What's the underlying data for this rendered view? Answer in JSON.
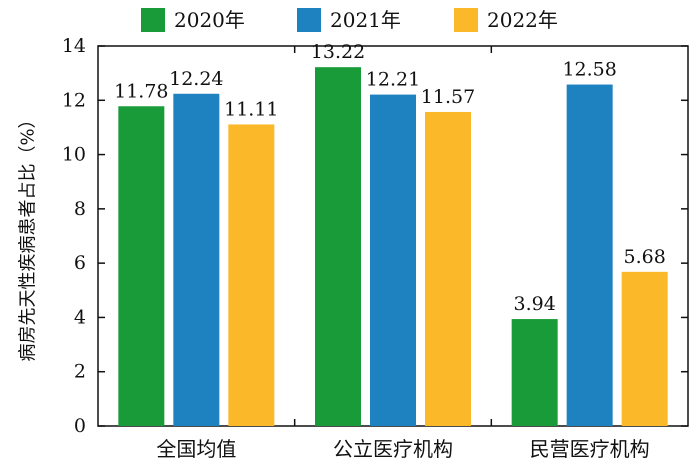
{
  "chart_data": {
    "type": "bar",
    "title": "",
    "xlabel": "",
    "ylabel": "病房先天性疾病患者占比（%）",
    "categories": [
      "全国均值",
      "公立医疗机构",
      "民营医疗机构"
    ],
    "series": [
      {
        "name": "2020年",
        "color": "#1a9b3a",
        "values": [
          11.78,
          13.22,
          3.94
        ]
      },
      {
        "name": "2021年",
        "color": "#1f82c0",
        "values": [
          12.24,
          12.21,
          12.58
        ]
      },
      {
        "name": "2022年",
        "color": "#fbb829",
        "values": [
          11.11,
          11.57,
          5.68
        ]
      }
    ],
    "ylim": [
      0,
      14
    ],
    "yticks": [
      0,
      2,
      4,
      6,
      8,
      10,
      12,
      14
    ],
    "grid": false,
    "legend_position": "top"
  }
}
